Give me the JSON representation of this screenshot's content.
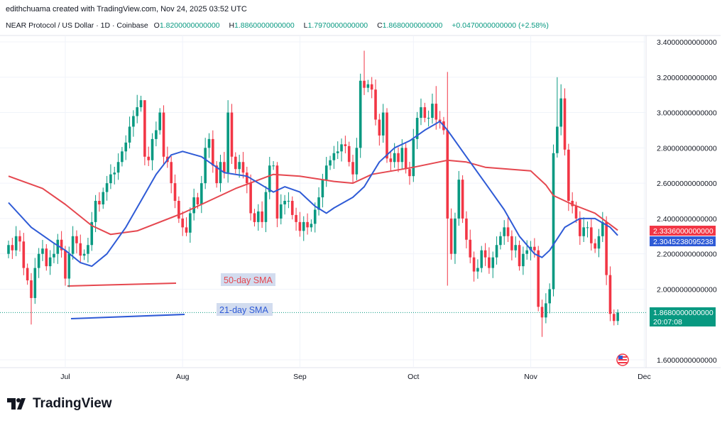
{
  "credit": "edithchuama created with TradingView.com, Nov 24, 2025 03:52 UTC",
  "legend": {
    "symbol": "NEAR Protocol / US Dollar · 1D · Coinbase",
    "o_label": "O",
    "o": "1.8200000000000",
    "h_label": "H",
    "h": "1.8860000000000",
    "l_label": "L",
    "l": "1.7970000000000",
    "c_label": "C",
    "c": "1.8680000000000",
    "change": "+0.0470000000000 (+2.58%)"
  },
  "logo_text": "TradingView",
  "colors": {
    "up": "#089981",
    "down": "#f23645",
    "sma50": "#e5474f",
    "sma21": "#2f5bd6",
    "last_price": "#089981"
  },
  "chart_data": {
    "type": "candlestick",
    "start_date": "2025-06-16",
    "interval": "1D",
    "ylim": [
      1.55,
      3.47
    ],
    "y_ticks": [
      "3.4000000000000",
      "3.2000000000000",
      "3.0000000000000",
      "2.8000000000000",
      "2.6000000000000",
      "2.4000000000000",
      "2.2000000000000",
      "2.0000000000000",
      "1.6000000000000"
    ],
    "y_tick_values": [
      3.4,
      3.2,
      3.0,
      2.8,
      2.6,
      2.4,
      2.2,
      2.0,
      1.6
    ],
    "x_ticks": [
      {
        "label": "Jul",
        "date": "2025-07-01"
      },
      {
        "label": "Aug",
        "date": "2025-08-01"
      },
      {
        "label": "Sep",
        "date": "2025-09-01"
      },
      {
        "label": "Oct",
        "date": "2025-10-01"
      },
      {
        "label": "Nov",
        "date": "2025-11-01"
      },
      {
        "label": "Dec",
        "date": "2025-12-01"
      }
    ],
    "first_open": 2.2,
    "close": [
      2.25,
      2.22,
      2.3,
      2.27,
      2.12,
      2.05,
      1.95,
      2.12,
      2.2,
      2.23,
      2.13,
      2.18,
      2.2,
      2.28,
      2.22,
      2.06,
      2.2,
      2.3,
      2.26,
      2.19,
      2.2,
      2.25,
      2.38,
      2.5,
      2.48,
      2.55,
      2.6,
      2.65,
      2.66,
      2.72,
      2.78,
      2.83,
      2.92,
      2.98,
      3.03,
      3.07,
      2.75,
      2.73,
      2.85,
      2.9,
      3.0,
      2.75,
      2.72,
      2.6,
      2.5,
      2.4,
      2.35,
      2.32,
      2.43,
      2.52,
      2.48,
      2.6,
      2.8,
      2.85,
      2.7,
      2.6,
      2.72,
      2.66,
      3.0,
      2.75,
      2.68,
      2.72,
      2.66,
      2.6,
      2.43,
      2.38,
      2.44,
      2.38,
      2.55,
      2.7,
      2.7,
      2.4,
      2.48,
      2.5,
      2.5,
      2.42,
      2.38,
      2.33,
      2.38,
      2.35,
      2.37,
      2.45,
      2.52,
      2.62,
      2.7,
      2.73,
      2.77,
      2.78,
      2.82,
      2.81,
      2.72,
      2.65,
      2.8,
      3.18,
      3.14,
      3.16,
      3.13,
      2.96,
      2.87,
      3.0,
      2.74,
      2.72,
      2.77,
      2.72,
      2.8,
      2.68,
      2.64,
      2.85,
      2.97,
      3.03,
      2.97,
      2.97,
      3.05,
      2.96,
      2.95,
      2.9,
      2.4,
      2.2,
      2.4,
      2.62,
      2.4,
      2.28,
      2.18,
      2.1,
      2.12,
      2.22,
      2.18,
      2.12,
      2.18,
      2.25,
      2.3,
      2.35,
      2.3,
      2.22,
      2.25,
      2.13,
      2.2,
      2.22,
      2.24,
      2.22,
      1.9,
      1.84,
      1.92,
      2.0,
      2.77,
      2.92,
      3.08,
      2.79,
      2.5,
      2.47,
      2.4,
      2.3,
      2.35,
      2.35,
      2.26,
      2.23,
      2.3,
      2.38,
      2.08,
      1.86,
      1.82,
      1.868
    ],
    "wick_extremes": [
      {
        "date": "2025-06-22",
        "low": 1.8
      },
      {
        "date": "2025-07-01",
        "low": 2.02
      },
      {
        "date": "2025-07-20",
        "high": 3.1
      },
      {
        "date": "2025-07-22",
        "high": 3.05
      },
      {
        "date": "2025-08-02",
        "low": 2.3
      },
      {
        "date": "2025-08-13",
        "high": 3.07
      },
      {
        "date": "2025-08-26",
        "high": 2.72
      },
      {
        "date": "2025-09-17",
        "high": 3.22
      },
      {
        "date": "2025-09-18",
        "high": 3.35
      },
      {
        "date": "2025-10-07",
        "high": 3.15
      },
      {
        "date": "2025-10-10",
        "high": 3.23,
        "low": 2.02
      },
      {
        "date": "2025-11-04",
        "low": 1.73
      },
      {
        "date": "2025-11-08",
        "high": 3.2
      },
      {
        "date": "2025-11-09",
        "high": 3.16
      },
      {
        "date": "2025-11-24",
        "open": 1.82,
        "high": 1.886,
        "low": 1.797
      }
    ],
    "series": [
      {
        "name": "50-day SMA",
        "color": "#e5474f",
        "last_value": "2.3336000000000",
        "points": [
          [
            "2025-06-16",
            2.64
          ],
          [
            "2025-06-25",
            2.57
          ],
          [
            "2025-07-01",
            2.48
          ],
          [
            "2025-07-08",
            2.36
          ],
          [
            "2025-07-13",
            2.31
          ],
          [
            "2025-07-20",
            2.33
          ],
          [
            "2025-08-01",
            2.43
          ],
          [
            "2025-08-15",
            2.57
          ],
          [
            "2025-08-25",
            2.65
          ],
          [
            "2025-09-01",
            2.64
          ],
          [
            "2025-09-10",
            2.61
          ],
          [
            "2025-09-15",
            2.6
          ],
          [
            "2025-09-20",
            2.65
          ],
          [
            "2025-10-01",
            2.69
          ],
          [
            "2025-10-10",
            2.73
          ],
          [
            "2025-10-15",
            2.72
          ],
          [
            "2025-10-20",
            2.69
          ],
          [
            "2025-11-01",
            2.67
          ],
          [
            "2025-11-05",
            2.59
          ],
          [
            "2025-11-07",
            2.53
          ],
          [
            "2025-11-12",
            2.48
          ],
          [
            "2025-11-18",
            2.43
          ],
          [
            "2025-11-24",
            2.3336
          ]
        ]
      },
      {
        "name": "21-day SMA",
        "color": "#2f5bd6",
        "last_value": "2.3045238095238",
        "points": [
          [
            "2025-06-16",
            2.49
          ],
          [
            "2025-06-22",
            2.35
          ],
          [
            "2025-06-28",
            2.26
          ],
          [
            "2025-07-01",
            2.22
          ],
          [
            "2025-07-05",
            2.15
          ],
          [
            "2025-07-08",
            2.13
          ],
          [
            "2025-07-12",
            2.2
          ],
          [
            "2025-07-17",
            2.35
          ],
          [
            "2025-07-21",
            2.5
          ],
          [
            "2025-07-25",
            2.65
          ],
          [
            "2025-07-29",
            2.76
          ],
          [
            "2025-08-01",
            2.78
          ],
          [
            "2025-08-06",
            2.75
          ],
          [
            "2025-08-12",
            2.66
          ],
          [
            "2025-08-18",
            2.64
          ],
          [
            "2025-08-25",
            2.55
          ],
          [
            "2025-08-28",
            2.58
          ],
          [
            "2025-09-01",
            2.55
          ],
          [
            "2025-09-05",
            2.47
          ],
          [
            "2025-09-08",
            2.43
          ],
          [
            "2025-09-10",
            2.46
          ],
          [
            "2025-09-15",
            2.52
          ],
          [
            "2025-09-18",
            2.58
          ],
          [
            "2025-09-22",
            2.72
          ],
          [
            "2025-09-26",
            2.8
          ],
          [
            "2025-09-30",
            2.84
          ],
          [
            "2025-10-04",
            2.9
          ],
          [
            "2025-10-08",
            2.95
          ],
          [
            "2025-10-10",
            2.9
          ],
          [
            "2025-10-15",
            2.75
          ],
          [
            "2025-10-20",
            2.6
          ],
          [
            "2025-10-25",
            2.45
          ],
          [
            "2025-10-29",
            2.3
          ],
          [
            "2025-11-02",
            2.2
          ],
          [
            "2025-11-04",
            2.18
          ],
          [
            "2025-11-06",
            2.22
          ],
          [
            "2025-11-10",
            2.35
          ],
          [
            "2025-11-14",
            2.4
          ],
          [
            "2025-11-18",
            2.4
          ],
          [
            "2025-11-22",
            2.35
          ],
          [
            "2025-11-24",
            2.3045
          ]
        ]
      }
    ],
    "annotations": [
      {
        "text": "50-day SMA",
        "color": "#e5474f"
      },
      {
        "text": "21-day SMA",
        "color": "#2f5bd6"
      }
    ],
    "last_price": {
      "value": "1.8680000000000",
      "countdown": "20:07:08",
      "price": 1.868
    }
  }
}
